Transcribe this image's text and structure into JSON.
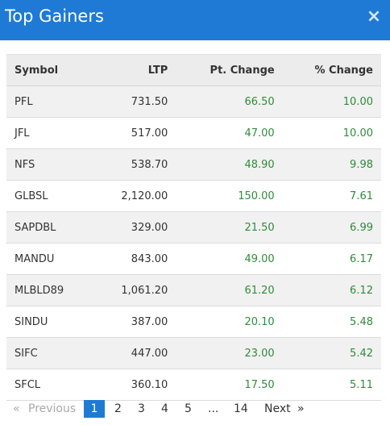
{
  "header": {
    "title": "Top Gainers",
    "close_glyph": "×"
  },
  "colors": {
    "accent": "#1f7ad6",
    "positive": "#2f8c3a"
  },
  "table": {
    "columns": [
      "Symbol",
      "LTP",
      "Pt. Change",
      "% Change"
    ],
    "rows": [
      {
        "symbol": "PFL",
        "ltp": "731.50",
        "pt_change": "66.50",
        "pct_change": "10.00"
      },
      {
        "symbol": "JFL",
        "ltp": "517.00",
        "pt_change": "47.00",
        "pct_change": "10.00"
      },
      {
        "symbol": "NFS",
        "ltp": "538.70",
        "pt_change": "48.90",
        "pct_change": "9.98"
      },
      {
        "symbol": "GLBSL",
        "ltp": "2,120.00",
        "pt_change": "150.00",
        "pct_change": "7.61"
      },
      {
        "symbol": "SAPDBL",
        "ltp": "329.00",
        "pt_change": "21.50",
        "pct_change": "6.99"
      },
      {
        "symbol": "MANDU",
        "ltp": "843.00",
        "pt_change": "49.00",
        "pct_change": "6.17"
      },
      {
        "symbol": "MLBLD89",
        "ltp": "1,061.20",
        "pt_change": "61.20",
        "pct_change": "6.12"
      },
      {
        "symbol": "SINDU",
        "ltp": "387.00",
        "pt_change": "20.10",
        "pct_change": "5.48"
      },
      {
        "symbol": "SIFC",
        "ltp": "447.00",
        "pt_change": "23.00",
        "pct_change": "5.42"
      },
      {
        "symbol": "SFCL",
        "ltp": "360.10",
        "pt_change": "17.50",
        "pct_change": "5.11"
      }
    ]
  },
  "pagination": {
    "prev_arrow": "«",
    "prev_label": "Previous",
    "pages": [
      "1",
      "2",
      "3",
      "4",
      "5"
    ],
    "ellipsis": "...",
    "last_page": "14",
    "next_label": "Next",
    "next_arrow": "»",
    "current_page": "1"
  }
}
